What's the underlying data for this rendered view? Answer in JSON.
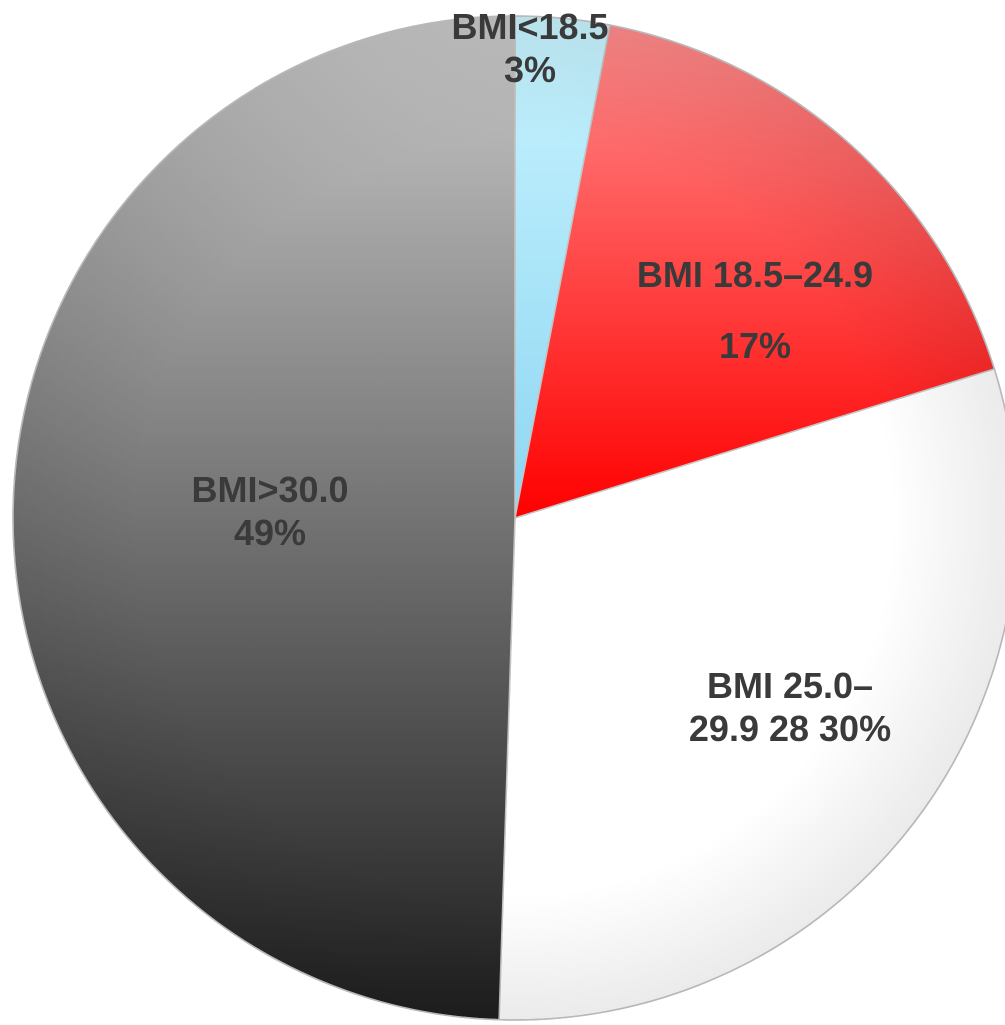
{
  "chart_data": {
    "type": "pie",
    "start_angle_deg": 0,
    "direction": "clockwise",
    "slices": [
      {
        "label": "BMI<18.5",
        "value_label": "3%",
        "value": 3,
        "color": "#B8EEFF"
      },
      {
        "label": "BMI 18.5–24.9",
        "value_label": "17%",
        "value": 17,
        "color": "#FF2020"
      },
      {
        "label_line1": "BMI 25.0–",
        "label_line2": "29.9 28 30%",
        "value": 30,
        "color": "#FFFFFF"
      },
      {
        "label": "BMI>30.0",
        "value_label": "49%",
        "value": 49,
        "color": "#555555"
      }
    ]
  }
}
